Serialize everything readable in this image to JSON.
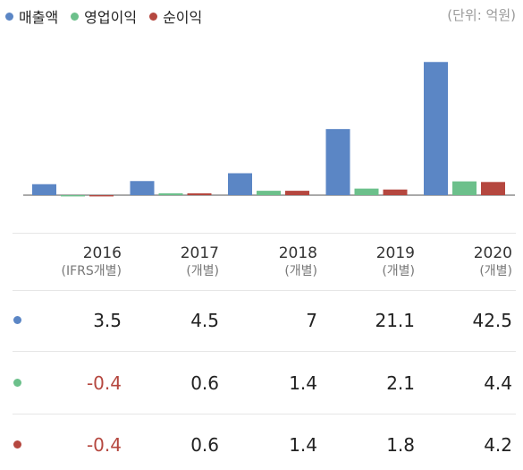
{
  "legend": {
    "items": [
      {
        "label": "매출액",
        "color": "#5b86c5"
      },
      {
        "label": "영업이익",
        "color": "#6cc08b"
      },
      {
        "label": "순이익",
        "color": "#b5473f"
      }
    ],
    "unit": "(단위: 억원)"
  },
  "chart_data": {
    "type": "bar",
    "categories": [
      "2016",
      "2017",
      "2018",
      "2019",
      "2020"
    ],
    "category_sub": [
      "(IFRS개별)",
      "(개별)",
      "(개별)",
      "(개별)",
      "(개별)"
    ],
    "series": [
      {
        "name": "매출액",
        "color": "#5b86c5",
        "values": [
          3.5,
          4.5,
          7,
          21.1,
          42.5
        ]
      },
      {
        "name": "영업이익",
        "color": "#6cc08b",
        "values": [
          -0.4,
          0.6,
          1.4,
          2.1,
          4.4
        ]
      },
      {
        "name": "순이익",
        "color": "#b5473f",
        "values": [
          -0.4,
          0.6,
          1.4,
          1.8,
          4.2
        ]
      }
    ],
    "grid": false,
    "legend_position": "top-left"
  },
  "table": {
    "rows": [
      {
        "series": "매출액",
        "color": "#5b86c5",
        "values": [
          "3.5",
          "4.5",
          "7",
          "21.1",
          "42.5"
        ]
      },
      {
        "series": "영업이익",
        "color": "#6cc08b",
        "values": [
          "-0.4",
          "0.6",
          "1.4",
          "2.1",
          "4.4"
        ]
      },
      {
        "series": "순이익",
        "color": "#b5473f",
        "values": [
          "-0.4",
          "0.6",
          "1.4",
          "1.8",
          "4.2"
        ]
      }
    ],
    "negative_color": "#b5473f"
  }
}
